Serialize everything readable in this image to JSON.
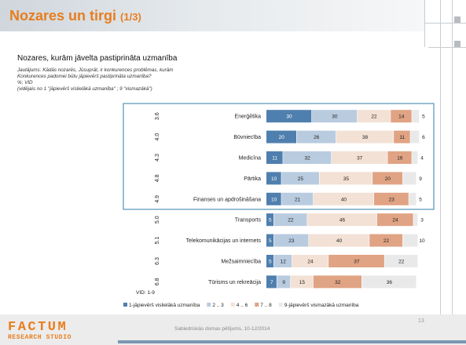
{
  "slide": {
    "title": "Nozares un tirgi",
    "paging": "(1/3)",
    "heading": "Nozares, kurām jāvelta pastiprināta uzmanība",
    "question": "Jautājums: Kādās nozarēs, Jūsuprāt, ir konkurences problēmas, kurām\nKonkurences padomei būtu jāpievērš pastiprināta uzmanība?\n%; VID\n(vidējais no 1 \"jāpievērš vislielākā uzmanība\" ; 9 \"vismazākā\")",
    "footer": "Sabiedriskās domas pētījums, 10-12/2014",
    "page_number": "13",
    "logo_top": "FACTUM",
    "logo_bottom": "RESEARCH STUDIO"
  },
  "colors": {
    "title": "#e87d1e",
    "series": [
      "#4f7fae",
      "#b9cbdf",
      "#f3e1d6",
      "#e0a384",
      "#e9e9e9"
    ],
    "highlight_box": "#2f7fa8"
  },
  "chart_data": {
    "type": "bar",
    "orientation": "horizontal",
    "stacked": true,
    "categories": [
      "Enerģētika",
      "Būvniecība",
      "Medicīna",
      "Pārtika",
      "Finanses un apdrošināšana",
      "Transports",
      "Telekomunikācijas un internets",
      "Mežsaimniecība",
      "Tūrisms un rekreācija"
    ],
    "vid": [
      "3.6",
      "4.0",
      "4.3",
      "4.8",
      "4.9",
      "5.0",
      "5.1",
      "6.3",
      "6.8"
    ],
    "vid_footnote": "VID: 1-9",
    "series": [
      {
        "name": "1-jāpievērš vislielākā uzmanība",
        "values": [
          30,
          20,
          11,
          10,
          10,
          5,
          5,
          5,
          7
        ]
      },
      {
        "name": "2 .. 3",
        "values": [
          30,
          26,
          32,
          25,
          21,
          22,
          23,
          12,
          9
        ]
      },
      {
        "name": "4 .. 6",
        "values": [
          22,
          38,
          37,
          35,
          40,
          46,
          40,
          24,
          15
        ]
      },
      {
        "name": "7 .. 8",
        "values": [
          14,
          11,
          16,
          20,
          23,
          24,
          22,
          37,
          32
        ]
      },
      {
        "name": "9-jāpievērš vismazākā uzmanība",
        "values": [
          5,
          6,
          4,
          9,
          5,
          3,
          10,
          22,
          36
        ]
      }
    ],
    "highlighted_categories": 5
  }
}
